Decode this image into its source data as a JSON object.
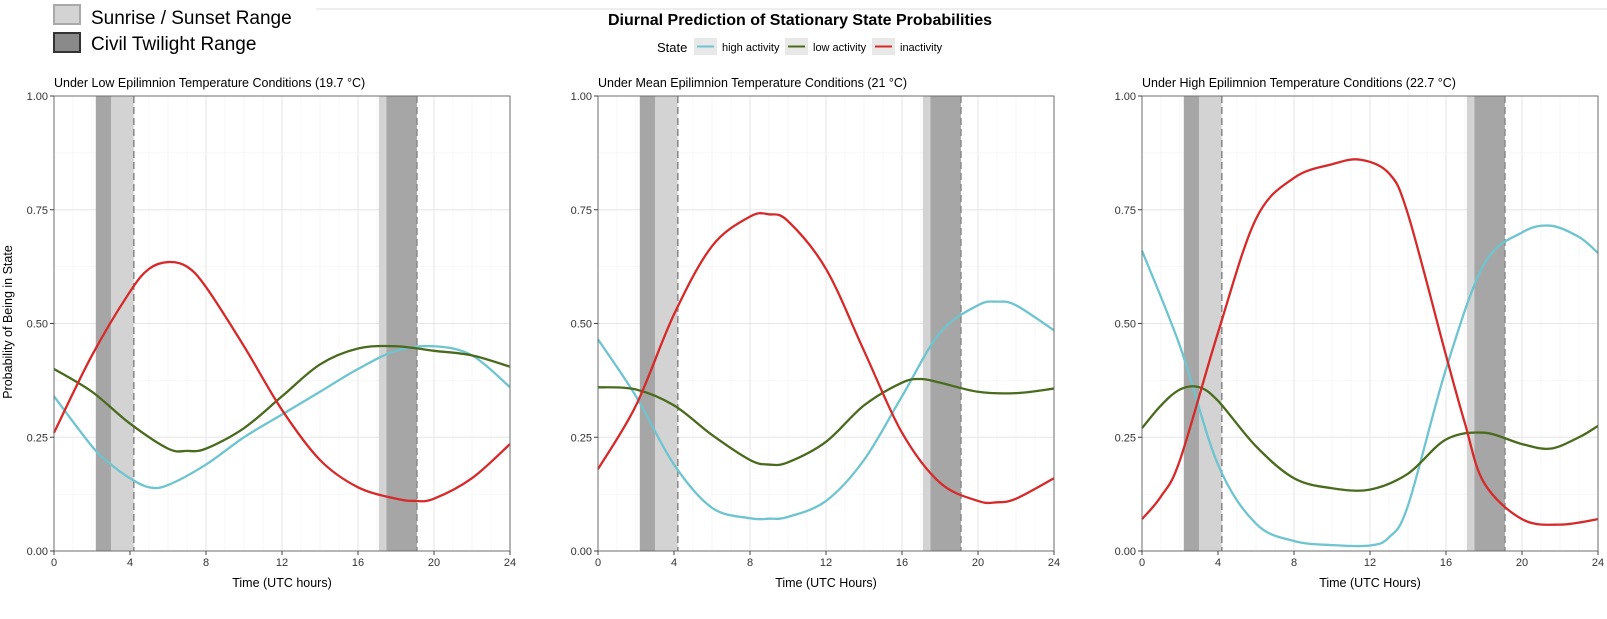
{
  "figure": {
    "title": "Diurnal Prediction of Stationary State Probabilities",
    "legend_title": "State",
    "legend_position": "top-center",
    "shade_legend": [
      {
        "label": "Sunrise / Sunset Range",
        "color": "#d3d3d3"
      },
      {
        "label": "Civil Twilight Range",
        "color": "#8a8a8a"
      }
    ],
    "colors": {
      "high activity": "#6ec4cf",
      "low activity": "#4a6b1e",
      "inactivity": "#d62a2a",
      "sunrise_sunset": "#d3d3d3",
      "civil_twilight": "#a6a6a6"
    }
  },
  "chart_data": [
    {
      "type": "line",
      "title": "Under Low Epilimnion Temperature Conditions (19.7 °C)",
      "xlabel": "Time (UTC hours)",
      "ylabel": "Probability of Being in State",
      "xlim": [
        0,
        24
      ],
      "ylim": [
        0,
        1
      ],
      "xticks": [
        "0",
        "4",
        "8",
        "12",
        "16",
        "20",
        "24"
      ],
      "yticks": [
        "0.00",
        "0.25",
        "0.50",
        "0.75",
        "1.00"
      ],
      "grid": true,
      "bands": {
        "civil_twilight": [
          [
            2.2,
            3.0
          ],
          [
            17.5,
            19.1
          ]
        ],
        "sunrise_sunset": [
          [
            3.0,
            4.2
          ],
          [
            17.1,
            17.5
          ]
        ]
      },
      "dashed_lines": [
        4.2,
        19.1
      ],
      "series": [
        {
          "name": "high activity",
          "x": [
            0,
            2,
            3,
            4,
            5,
            6,
            8,
            10,
            12,
            14,
            16,
            18,
            20,
            22,
            24
          ],
          "y": [
            0.34,
            0.23,
            0.19,
            0.16,
            0.14,
            0.145,
            0.19,
            0.25,
            0.3,
            0.35,
            0.4,
            0.44,
            0.45,
            0.43,
            0.36
          ]
        },
        {
          "name": "low activity",
          "x": [
            0,
            2,
            4,
            6,
            7,
            8,
            10,
            12,
            14,
            16,
            18,
            20,
            22,
            24
          ],
          "y": [
            0.4,
            0.35,
            0.28,
            0.225,
            0.22,
            0.225,
            0.27,
            0.34,
            0.41,
            0.445,
            0.45,
            0.44,
            0.43,
            0.405
          ]
        },
        {
          "name": "inactivity",
          "x": [
            0,
            2,
            4,
            5,
            6,
            7,
            8,
            10,
            12,
            14,
            16,
            18,
            19,
            20,
            22,
            24
          ],
          "y": [
            0.26,
            0.43,
            0.57,
            0.62,
            0.635,
            0.625,
            0.58,
            0.45,
            0.31,
            0.2,
            0.14,
            0.115,
            0.11,
            0.115,
            0.16,
            0.235
          ]
        }
      ]
    },
    {
      "type": "line",
      "title": "Under Mean Epilimnion Temperature Conditions (21 °C)",
      "xlabel": "Time (UTC Hours)",
      "ylabel": "",
      "xlim": [
        0,
        24
      ],
      "ylim": [
        0,
        1
      ],
      "xticks": [
        "0",
        "4",
        "8",
        "12",
        "16",
        "20",
        "24"
      ],
      "yticks": [
        "0.00",
        "0.25",
        "0.50",
        "0.75",
        "1.00"
      ],
      "grid": true,
      "bands": {
        "civil_twilight": [
          [
            2.2,
            3.0
          ],
          [
            17.5,
            19.1
          ]
        ],
        "sunrise_sunset": [
          [
            3.0,
            4.2
          ],
          [
            17.1,
            17.5
          ]
        ]
      },
      "dashed_lines": [
        4.2,
        19.1
      ],
      "series": [
        {
          "name": "high activity",
          "x": [
            0,
            2,
            4,
            6,
            8,
            9,
            10,
            12,
            14,
            16,
            18,
            20,
            21,
            22,
            24
          ],
          "y": [
            0.465,
            0.34,
            0.19,
            0.095,
            0.072,
            0.071,
            0.075,
            0.11,
            0.2,
            0.34,
            0.48,
            0.54,
            0.548,
            0.54,
            0.485
          ]
        },
        {
          "name": "low activity",
          "x": [
            0,
            2,
            4,
            6,
            8,
            9,
            10,
            12,
            14,
            16,
            17,
            18,
            20,
            22,
            24
          ],
          "y": [
            0.36,
            0.355,
            0.32,
            0.255,
            0.2,
            0.19,
            0.195,
            0.24,
            0.32,
            0.37,
            0.378,
            0.37,
            0.35,
            0.347,
            0.357
          ]
        },
        {
          "name": "inactivity",
          "x": [
            0,
            2,
            4,
            6,
            8,
            9,
            10,
            12,
            14,
            16,
            18,
            20,
            21,
            22,
            24
          ],
          "y": [
            0.18,
            0.32,
            0.52,
            0.67,
            0.735,
            0.74,
            0.725,
            0.62,
            0.44,
            0.26,
            0.15,
            0.11,
            0.107,
            0.115,
            0.16
          ]
        }
      ]
    },
    {
      "type": "line",
      "title": "Under High Epilimnion Temperature Conditions (22.7 °C)",
      "xlabel": "Time (UTC Hours)",
      "ylabel": "",
      "xlim": [
        0,
        24
      ],
      "ylim": [
        0,
        1
      ],
      "xticks": [
        "0",
        "4",
        "8",
        "12",
        "16",
        "20",
        "24"
      ],
      "yticks": [
        "0.00",
        "0.25",
        "0.50",
        "0.75",
        "1.00"
      ],
      "grid": true,
      "bands": {
        "civil_twilight": [
          [
            2.2,
            3.0
          ],
          [
            17.5,
            19.1
          ]
        ],
        "sunrise_sunset": [
          [
            3.0,
            4.2
          ],
          [
            17.1,
            17.5
          ]
        ]
      },
      "dashed_lines": [
        4.2,
        19.1
      ],
      "series": [
        {
          "name": "high activity",
          "x": [
            0,
            2,
            4,
            6,
            8,
            10,
            12,
            13,
            14,
            16,
            18,
            20,
            21.5,
            23,
            24
          ],
          "y": [
            0.66,
            0.45,
            0.19,
            0.06,
            0.022,
            0.013,
            0.012,
            0.03,
            0.1,
            0.4,
            0.63,
            0.7,
            0.715,
            0.69,
            0.655
          ]
        },
        {
          "name": "low activity",
          "x": [
            0,
            1,
            2,
            3,
            4,
            6,
            8,
            10,
            12,
            14,
            16,
            18,
            20,
            21.5,
            23,
            24
          ],
          "y": [
            0.27,
            0.32,
            0.355,
            0.36,
            0.33,
            0.23,
            0.16,
            0.138,
            0.135,
            0.17,
            0.245,
            0.26,
            0.235,
            0.225,
            0.25,
            0.275
          ]
        },
        {
          "name": "inactivity",
          "x": [
            0,
            1,
            2,
            4,
            6,
            8,
            10,
            11.5,
            13,
            14,
            16,
            17,
            18,
            20,
            22,
            24
          ],
          "y": [
            0.07,
            0.12,
            0.2,
            0.48,
            0.73,
            0.82,
            0.85,
            0.86,
            0.83,
            0.74,
            0.43,
            0.28,
            0.15,
            0.07,
            0.058,
            0.07
          ]
        }
      ]
    }
  ]
}
